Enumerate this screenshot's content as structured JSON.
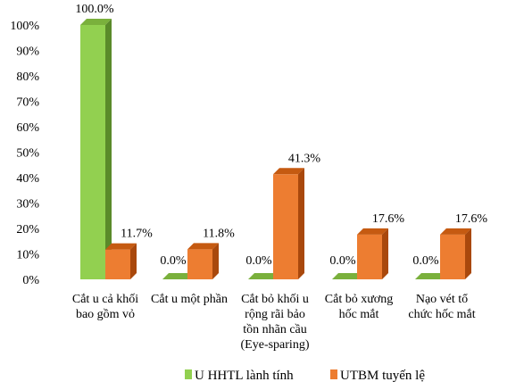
{
  "chart_data": {
    "type": "bar",
    "style": "3d-clustered",
    "categories": [
      [
        "Cắt u cả khối",
        "bao gồm vỏ"
      ],
      [
        "Cắt u một phần"
      ],
      [
        "Cắt bỏ khối u",
        "rộng rãi bảo",
        "tồn nhãn cầu",
        "(Eye-sparing)"
      ],
      [
        "Cắt bỏ xương",
        "hốc mắt"
      ],
      [
        "Nạo vét tổ",
        "chức hốc mắt"
      ]
    ],
    "series": [
      {
        "name": "U HHTL lành tính",
        "color": "#92d050",
        "top_color": "#7ab03c",
        "side_color": "#5a8a2a",
        "values": [
          100.0,
          0.0,
          0.0,
          0.0,
          0.0
        ],
        "labels": [
          "100.0%",
          "0.0%",
          "0.0%",
          "0.0%",
          "0.0%"
        ]
      },
      {
        "name": "UTBM tuyến lệ",
        "color": "#ed7d31",
        "top_color": "#c55a11",
        "side_color": "#a9480c",
        "values": [
          11.7,
          11.8,
          41.3,
          17.6,
          17.6
        ],
        "labels": [
          "11.7%",
          "11.8%",
          "41.3%",
          "17.6%",
          "17.6%"
        ]
      }
    ],
    "ylim": [
      0,
      100
    ],
    "yticks": [
      "0%",
      "10%",
      "20%",
      "30%",
      "40%",
      "50%",
      "60%",
      "70%",
      "80%",
      "90%",
      "100%"
    ],
    "grid": false,
    "legend_position": "bottom"
  }
}
